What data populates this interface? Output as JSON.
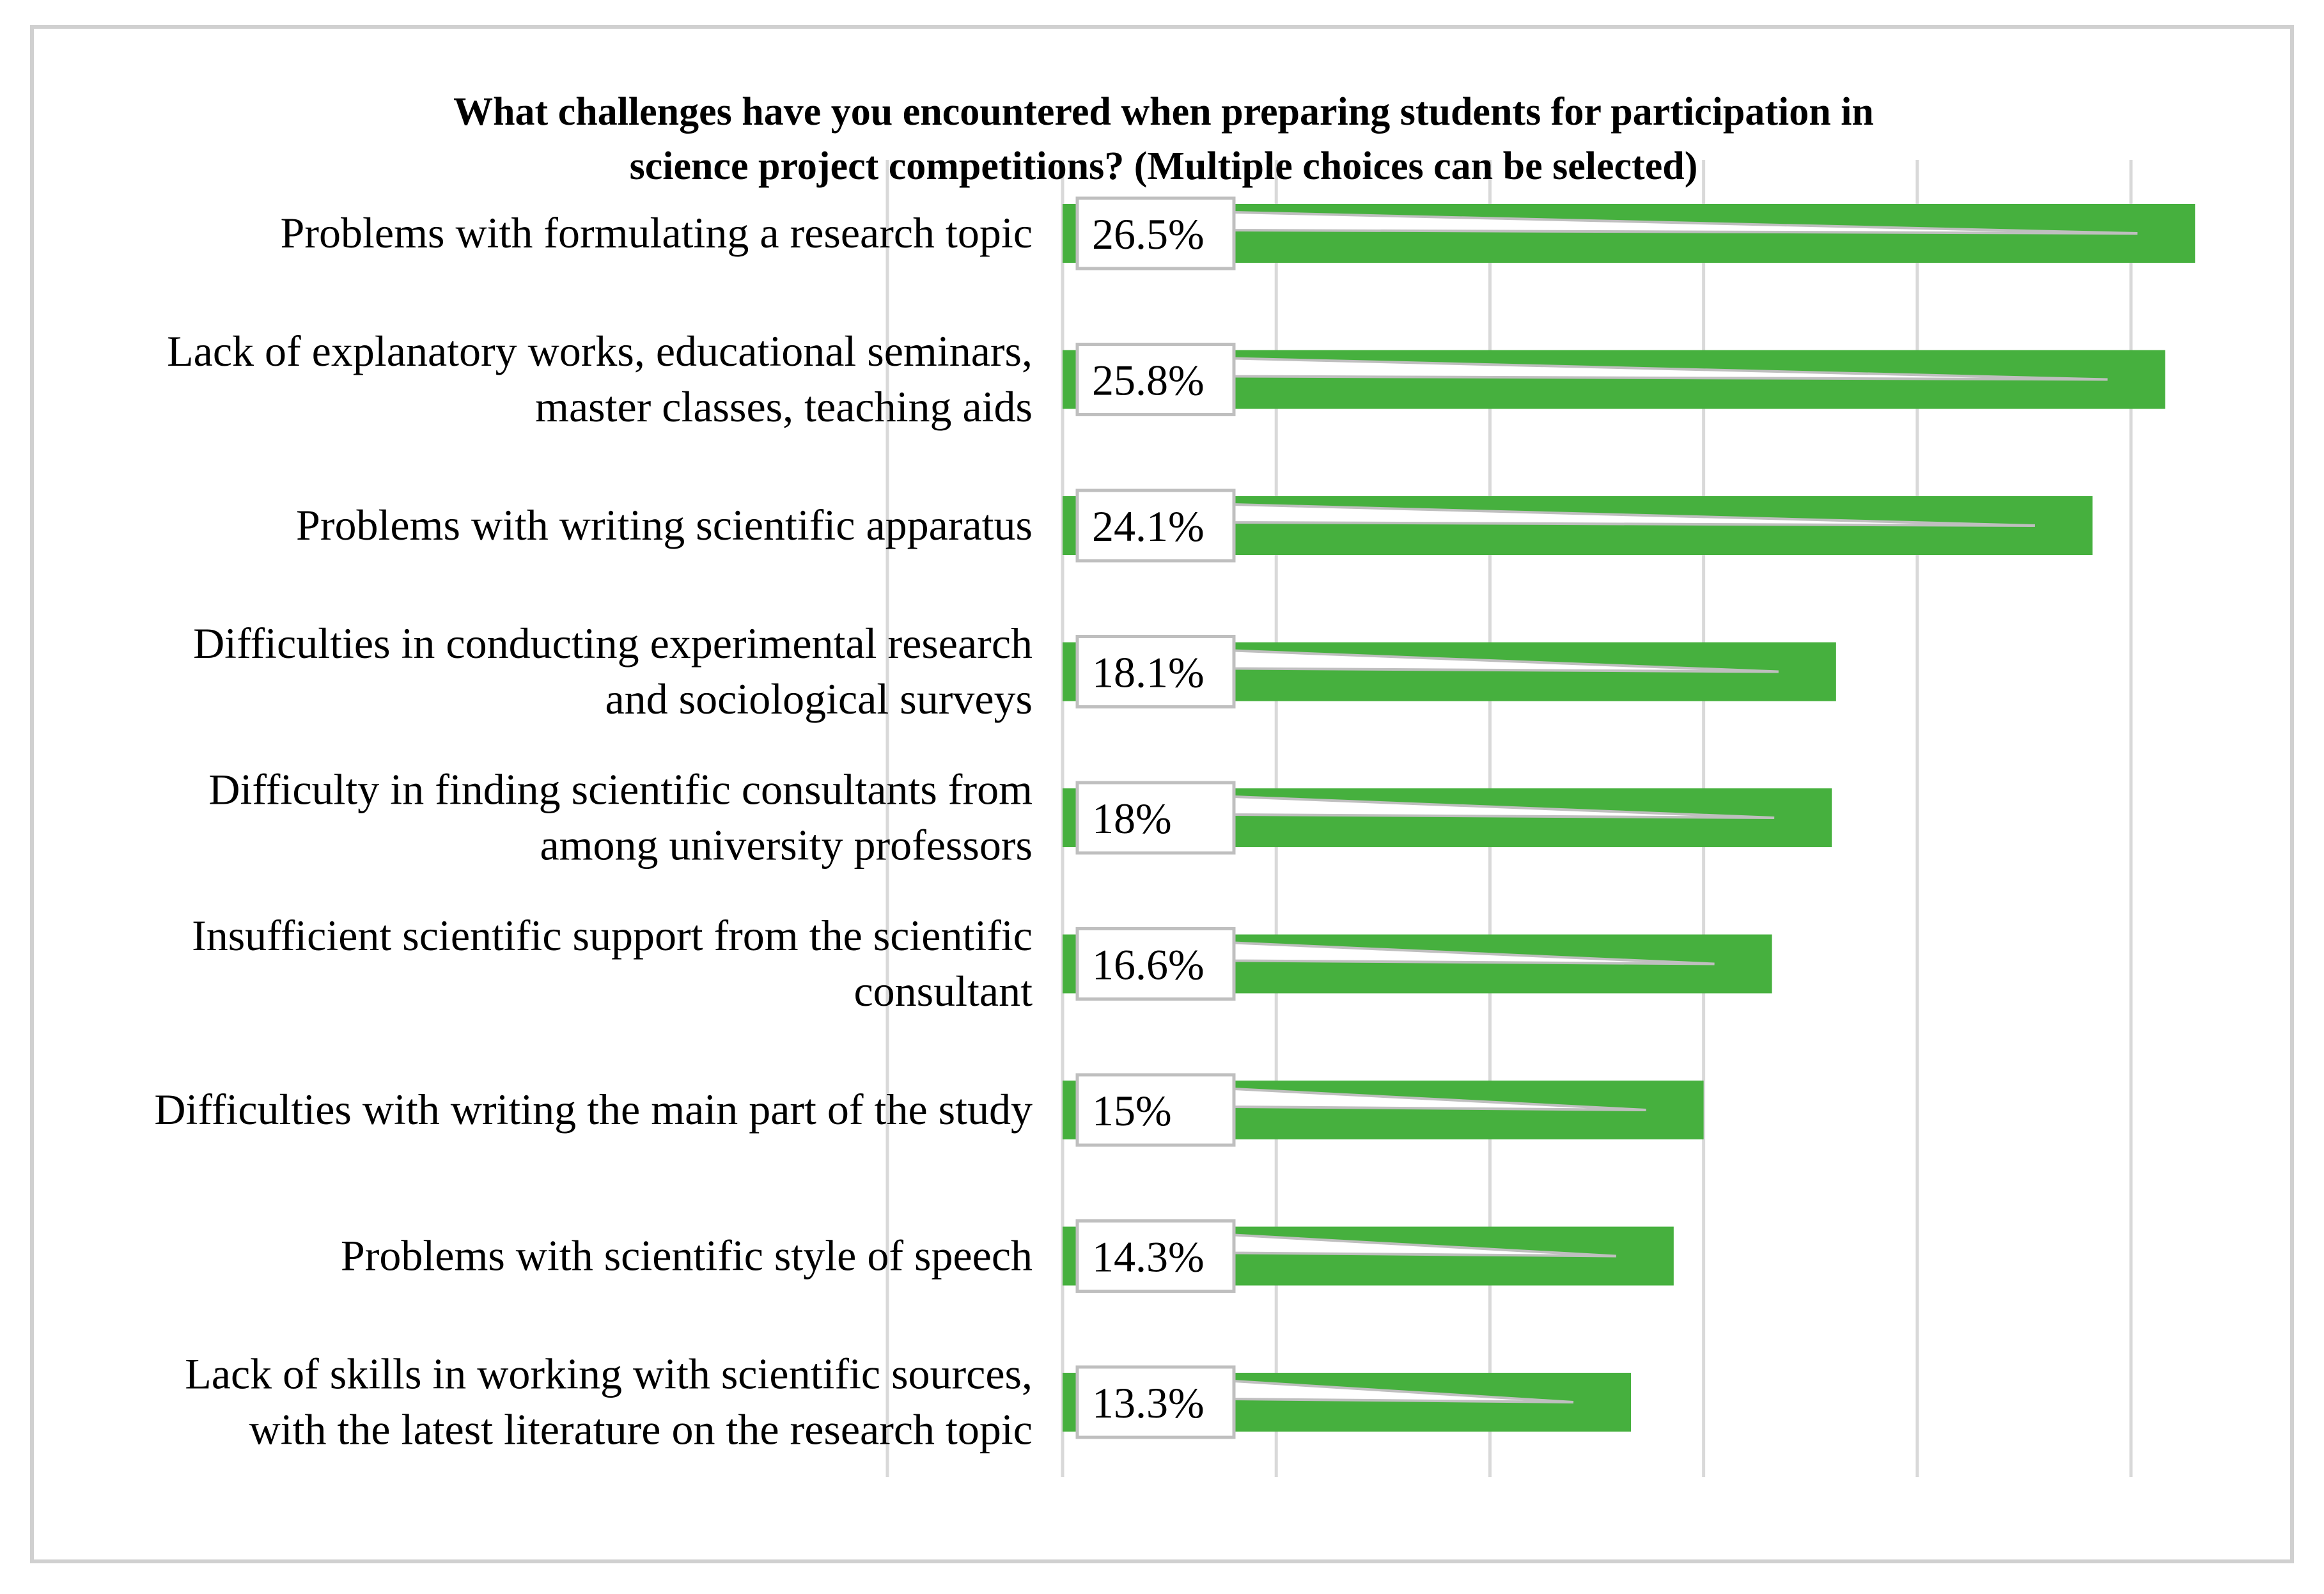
{
  "chart_data": {
    "type": "bar",
    "orientation": "horizontal",
    "title_lines": [
      "What challenges have you encountered when preparing students for participation in",
      "science project competitions? (Multiple choices can be selected)"
    ],
    "categories": [
      [
        "Problems with formulating a research topic"
      ],
      [
        "Lack of explanatory works, educational seminars,",
        "master classes, teaching aids"
      ],
      [
        "Problems with writing scientific apparatus"
      ],
      [
        "Difficulties in conducting experimental research",
        "and sociological surveys"
      ],
      [
        "Difficulty in finding scientific consultants from",
        "among university professors"
      ],
      [
        "Insufficient scientific support from the scientific",
        "consultant"
      ],
      [
        "Difficulties with writing the main part of the study"
      ],
      [
        "Problems with scientific style of speech"
      ],
      [
        "Lack of skills in working with scientific sources,",
        "with the latest literature on the research topic"
      ]
    ],
    "values": [
      26.5,
      25.8,
      24.1,
      18.1,
      18,
      16.6,
      15,
      14.3,
      13.3
    ],
    "data_labels": [
      "26.5%",
      "25.8%",
      "24.1%",
      "18.1%",
      "18%",
      "16.6%",
      "15%",
      "14.3%",
      "13.3%"
    ],
    "xlim": [
      0,
      26.6
    ],
    "x_gridlines": [
      0,
      5,
      10,
      15,
      20,
      25
    ],
    "grid": true,
    "legend": "none",
    "bar_color": "#46B03E",
    "grid_color": "#D9D9D9",
    "label_box_border": "#BFBFBF",
    "frame_color": "#D0D0D0"
  }
}
